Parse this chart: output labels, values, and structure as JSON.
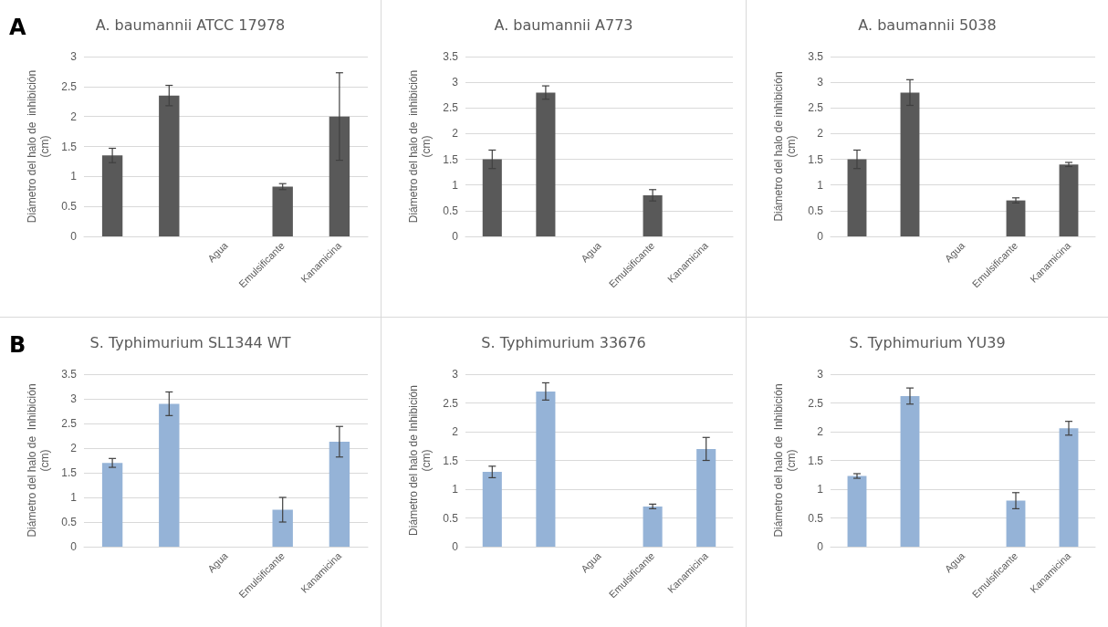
{
  "chart_data": [
    {
      "type": "bar",
      "title": "A. baumannii ATCC 17978",
      "ylabel": "Diámetro del halo de  inhibición\n(cm)",
      "annotations": [
        "A"
      ],
      "categories": [
        null,
        null,
        "Agua",
        "Emulsificante",
        "Kanamicina"
      ],
      "values": [
        1.35,
        2.35,
        0,
        0.83,
        2.0
      ],
      "errors": [
        0.12,
        0.17,
        null,
        0.05,
        0.73
      ],
      "color": "#595959",
      "ylim": [
        0,
        3
      ],
      "yticks": [
        0,
        0.5,
        1,
        1.5,
        2,
        2.5,
        3
      ],
      "grid": "y"
    },
    {
      "type": "bar",
      "title": "A. baumannii A773",
      "ylabel": "Diámetro del halo de  inhibición\n(cm)",
      "categories": [
        null,
        null,
        "Agua",
        "Emulsificante",
        "Kanamicina"
      ],
      "values": [
        1.5,
        2.8,
        0,
        0.8,
        0
      ],
      "errors": [
        0.18,
        0.13,
        null,
        0.11,
        null
      ],
      "color": "#595959",
      "ylim": [
        0,
        3.5
      ],
      "yticks": [
        0,
        0.5,
        1,
        1.5,
        2,
        2.5,
        3,
        3.5
      ],
      "grid": "y"
    },
    {
      "type": "bar",
      "title": "A. baumannii 5038",
      "ylabel": "Diámetro del halo de inhibición\n(cm)",
      "categories": [
        null,
        null,
        "Agua",
        "Emulsificante",
        "Kanamicina"
      ],
      "values": [
        1.5,
        2.8,
        0,
        0.7,
        1.4
      ],
      "errors": [
        0.18,
        0.25,
        null,
        0.05,
        0.04
      ],
      "color": "#595959",
      "ylim": [
        0,
        3.5
      ],
      "yticks": [
        0,
        0.5,
        1,
        1.5,
        2,
        2.5,
        3,
        3.5
      ],
      "grid": "y"
    },
    {
      "type": "bar",
      "title": "S. Typhimurium SL1344 WT",
      "ylabel": "Diámetro del halo de  Inhibición\n(cm)",
      "annotations": [
        "B"
      ],
      "categories": [
        null,
        null,
        "Agua",
        "Emulsificante",
        "Kanamicina"
      ],
      "values": [
        1.7,
        2.9,
        0,
        0.75,
        2.13
      ],
      "errors": [
        0.09,
        0.24,
        null,
        0.25,
        0.31
      ],
      "color": "#95b3d7",
      "ylim": [
        0,
        3.5
      ],
      "yticks": [
        0,
        0.5,
        1,
        1.5,
        2,
        2.5,
        3,
        3.5
      ],
      "grid": "y"
    },
    {
      "type": "bar",
      "title": "S. Typhimurium 33676",
      "ylabel": "Diámetro del halo de Inhibición\n(cm)",
      "categories": [
        null,
        null,
        "Agua",
        "Emulsificante",
        "Kanamicina"
      ],
      "values": [
        1.3,
        2.7,
        0,
        0.7,
        1.7
      ],
      "errors": [
        0.1,
        0.15,
        null,
        0.04,
        0.2
      ],
      "color": "#95b3d7",
      "ylim": [
        0,
        3
      ],
      "yticks": [
        0,
        0.5,
        1,
        1.5,
        2,
        2.5,
        3
      ],
      "grid": "y"
    },
    {
      "type": "bar",
      "title": "S. Typhimurium YU39",
      "ylabel": "Diámetro del halo de  Inhibición\n(cm)",
      "categories": [
        null,
        null,
        "Agua",
        "Emulsificante",
        "Kanamicina"
      ],
      "values": [
        1.23,
        2.62,
        0,
        0.8,
        2.06
      ],
      "errors": [
        0.04,
        0.14,
        null,
        0.14,
        0.12
      ],
      "color": "#95b3d7",
      "ylim": [
        0,
        3
      ],
      "yticks": [
        0,
        0.5,
        1,
        1.5,
        2,
        2.5,
        3
      ],
      "grid": "y"
    }
  ]
}
